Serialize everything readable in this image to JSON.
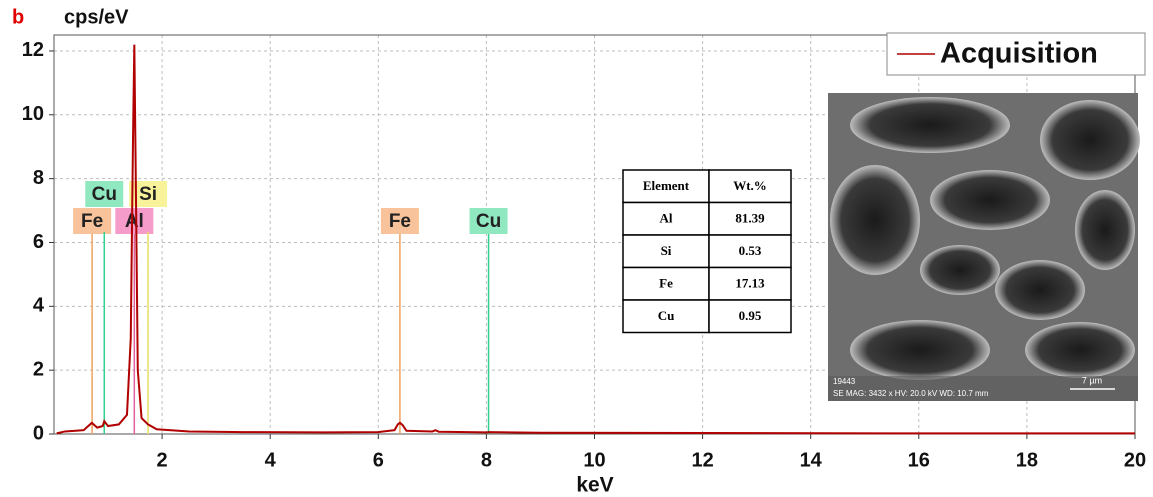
{
  "chart_data": {
    "type": "line",
    "panel_label": "b",
    "ylabel": "cps/eV",
    "xlabel": "keV",
    "xlim": [
      0,
      20
    ],
    "xticks": [
      2,
      4,
      6,
      8,
      10,
      12,
      14,
      16,
      18,
      20
    ],
    "ylim": [
      0,
      12.5
    ],
    "yticks": [
      0,
      2,
      4,
      6,
      8,
      10,
      12
    ],
    "grid": true,
    "legend": "upper right",
    "series": [
      {
        "name": "Acquisition",
        "color": "#b00000",
        "x": [
          0.05,
          0.2,
          0.4,
          0.55,
          0.6,
          0.7,
          0.8,
          0.9,
          0.93,
          1.0,
          1.2,
          1.35,
          1.42,
          1.46,
          1.486,
          1.51,
          1.55,
          1.62,
          1.74,
          1.9,
          2.5,
          3.5,
          5,
          6.0,
          6.3,
          6.36,
          6.4,
          6.45,
          6.52,
          7.0,
          7.06,
          7.12,
          8.0,
          8.04,
          9,
          12,
          16,
          20
        ],
        "values": [
          0.02,
          0.08,
          0.1,
          0.12,
          0.2,
          0.35,
          0.2,
          0.25,
          0.4,
          0.25,
          0.3,
          0.6,
          3.0,
          9.0,
          12.2,
          8.5,
          2.0,
          0.5,
          0.3,
          0.15,
          0.08,
          0.06,
          0.05,
          0.06,
          0.12,
          0.3,
          0.35,
          0.28,
          0.1,
          0.08,
          0.12,
          0.07,
          0.05,
          0.06,
          0.04,
          0.03,
          0.02,
          0.02
        ]
      }
    ],
    "element_markers": [
      {
        "label": "Fe",
        "x": 0.705,
        "color": "#f0a060",
        "label_color": "#f8c39a"
      },
      {
        "label": "Cu",
        "x": 0.93,
        "color": "#30d090",
        "label_color": "#8fe8c0"
      },
      {
        "label": "Al",
        "x": 1.486,
        "color": "#e060a0",
        "label_color": "#f59ccb"
      },
      {
        "label": "Si",
        "x": 1.74,
        "color": "#e8e060",
        "label_color": "#f8f29a"
      },
      {
        "label": "Fe",
        "x": 6.4,
        "color": "#f0a060",
        "label_color": "#f8c39a"
      },
      {
        "label": "Cu",
        "x": 8.04,
        "color": "#30d090",
        "label_color": "#8fe8c0"
      }
    ],
    "table": {
      "columns": [
        "Element",
        "Wt.%"
      ],
      "rows": [
        [
          "Al",
          81.39
        ],
        [
          "Si",
          0.53
        ],
        [
          "Fe",
          17.13
        ],
        [
          "Cu",
          0.95
        ]
      ]
    },
    "inset": {
      "id": "19443",
      "info": "SE  MAG: 3432 x  HV: 20.0 kV  WD: 10.7 mm",
      "scale": "7 µm"
    }
  }
}
